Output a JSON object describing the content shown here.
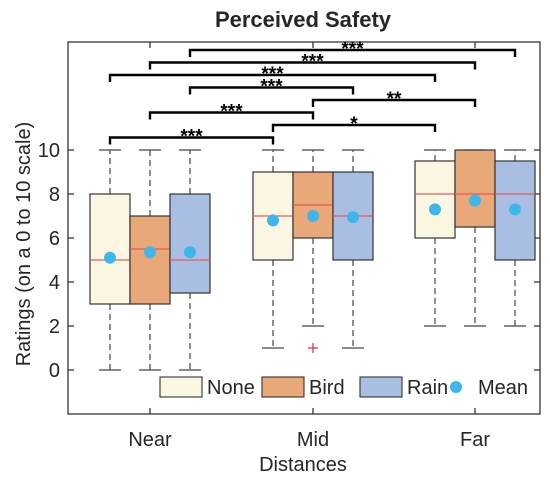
{
  "chart_data": {
    "type": "box",
    "title": "Perceived Safety",
    "xlabel": "Distances",
    "ylabel": "Ratings (on a 0 to 10 scale)",
    "categories": [
      "Near",
      "Mid",
      "Far"
    ],
    "yticks": [
      0,
      2,
      4,
      6,
      8,
      10
    ],
    "ylim": [
      -2.0,
      16.1
    ],
    "grid": false,
    "legend_position": "bottom-right",
    "series": [
      {
        "name": "None",
        "color": "#FBF6E2",
        "boxes": [
          {
            "category": "Near",
            "min": 0,
            "q1": 3,
            "median": 5,
            "q3": 8,
            "max": 10,
            "mean": 5.1,
            "outliers": []
          },
          {
            "category": "Mid",
            "min": 1,
            "q1": 5,
            "median": 7,
            "q3": 9,
            "max": 10,
            "mean": 6.8,
            "outliers": []
          },
          {
            "category": "Far",
            "min": 2,
            "q1": 6,
            "median": 8,
            "q3": 9.5,
            "max": 10,
            "mean": 7.3,
            "outliers": []
          }
        ]
      },
      {
        "name": "Bird",
        "color": "#E9A878",
        "boxes": [
          {
            "category": "Near",
            "min": 0,
            "q1": 3,
            "median": 5.5,
            "q3": 7,
            "max": 10,
            "mean": 5.35,
            "outliers": []
          },
          {
            "category": "Mid",
            "min": 2,
            "q1": 6,
            "median": 7.5,
            "q3": 9,
            "max": 10,
            "mean": 7.0,
            "outliers": [
              1
            ]
          },
          {
            "category": "Far",
            "min": 2,
            "q1": 6.5,
            "median": 8,
            "q3": 10,
            "max": 10,
            "mean": 7.7,
            "outliers": []
          }
        ]
      },
      {
        "name": "Rain",
        "color": "#A8BFE3",
        "boxes": [
          {
            "category": "Near",
            "min": 0,
            "q1": 3.5,
            "median": 5,
            "q3": 8,
            "max": 10,
            "mean": 5.35,
            "outliers": []
          },
          {
            "category": "Mid",
            "min": 1,
            "q1": 5,
            "median": 7,
            "q3": 9,
            "max": 10,
            "mean": 6.95,
            "outliers": []
          },
          {
            "category": "Far",
            "min": 2,
            "q1": 5,
            "median": 8,
            "q3": 9.5,
            "max": 10,
            "mean": 7.3,
            "outliers": []
          }
        ]
      }
    ],
    "mean_marker": {
      "name": "Mean",
      "color": "#3DB7EA"
    },
    "median_color": "#E8595B",
    "outlier_color": "#E8333A",
    "significance": [
      {
        "from": "Near",
        "to": "Far",
        "stars": "***",
        "group": "Rain"
      },
      {
        "from": "Near",
        "to": "Far",
        "stars": "***",
        "group": "Bird"
      },
      {
        "from": "Near",
        "to": "Far",
        "stars": "***",
        "group": "None"
      },
      {
        "from": "Near",
        "to": "Mid",
        "stars": "***",
        "group": "Rain"
      },
      {
        "from": "Mid",
        "to": "Far",
        "stars": "**",
        "group": "Bird"
      },
      {
        "from": "Near",
        "to": "Mid",
        "stars": "***",
        "group": "Bird"
      },
      {
        "from": "Mid",
        "to": "Far",
        "stars": "*",
        "group": "None"
      },
      {
        "from": "Near",
        "to": "Mid",
        "stars": "***",
        "group": "None"
      }
    ]
  }
}
